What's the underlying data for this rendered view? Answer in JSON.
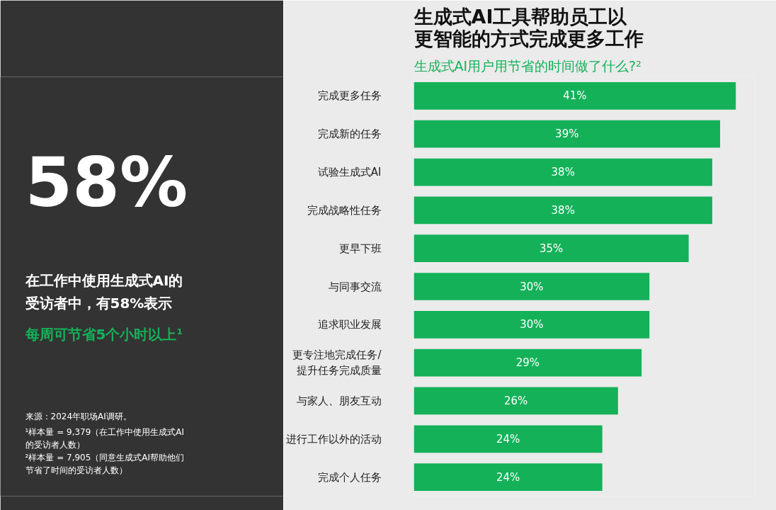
{
  "chart_data": [
    {
      "type": "other",
      "title": "58%",
      "subtitle": "在工作中使用生成式AI的受访者中，有58%表示",
      "annotations": [
        "每周可节省5个小时以上¹",
        "来源：2024年职场AI调研。",
        "¹样本量 = 9,379（在工作中使用生成式AI的受访者人数）",
        "²样本量 = 7,905（同意生成式AI帮助他们节省了时间的受访者人数）"
      ]
    },
    {
      "type": "bar",
      "orientation": "horizontal",
      "title": "生成式AI工具帮助员工以更智能的方式完成更多工作",
      "subtitle": "生成式AI用户用节省的时间做了什么?²",
      "categories": [
        "完成更多任务",
        "完成新的任务",
        "试验生成式AI",
        "完成战略性任务",
        "更早下班",
        "与同事交流",
        "追求职业发展",
        "更专注地完成任务/\n提升任务完成质量",
        "与家人、朋友互动",
        "进行工作以外的活动",
        "完成个人任务"
      ],
      "values": [
        41,
        39,
        38,
        38,
        35,
        30,
        30,
        29,
        26,
        24,
        24
      ],
      "value_labels": [
        "41%",
        "39%",
        "38%",
        "38%",
        "35%",
        "30%",
        "30%",
        "29%",
        "26%",
        "24%",
        "24%"
      ],
      "color": "#14b159"
    }
  ]
}
